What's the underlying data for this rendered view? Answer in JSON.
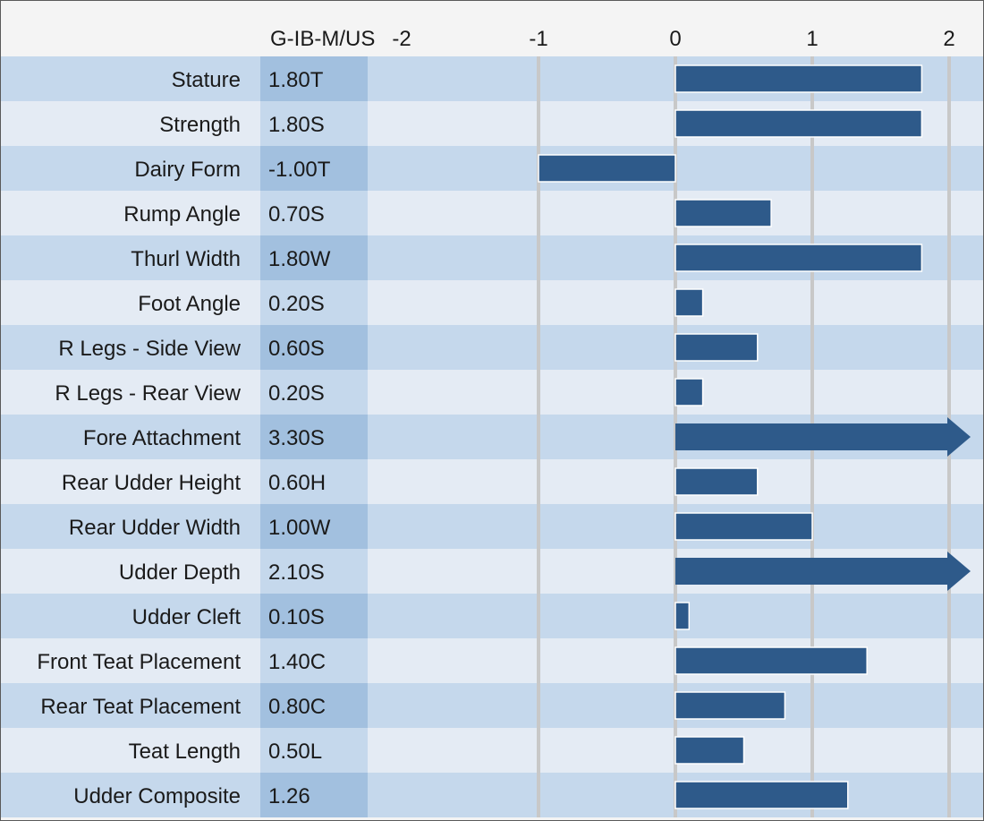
{
  "chart_data": {
    "type": "bar",
    "orientation": "horizontal",
    "value_column_header": "G-IB-M/US",
    "x_ticks": [
      -2,
      -1,
      0,
      1,
      2
    ],
    "x_tick_labels": [
      "-2",
      "-1",
      "0",
      "1",
      "2"
    ],
    "xlim": [
      -2,
      2.2
    ],
    "grid": true,
    "categories": [
      "Stature",
      "Strength",
      "Dairy Form",
      "Rump Angle",
      "Thurl Width",
      "Foot Angle",
      "R Legs - Side View",
      "R Legs - Rear View",
      "Fore Attachment",
      "Rear Udder Height",
      "Rear Udder Width",
      "Udder Depth",
      "Udder Cleft",
      "Front Teat Placement",
      "Rear Teat Placement",
      "Teat Length",
      "Udder Composite"
    ],
    "value_labels": [
      "1.80T",
      "1.80S",
      "-1.00T",
      "0.70S",
      "1.80W",
      "0.20S",
      "0.60S",
      "0.20S",
      "3.30S",
      "0.60H",
      "1.00W",
      "2.10S",
      "0.10S",
      "1.40C",
      "0.80C",
      "0.50L",
      "1.26"
    ],
    "values": [
      1.8,
      1.8,
      -1.0,
      0.7,
      1.8,
      0.2,
      0.6,
      0.2,
      3.3,
      0.6,
      1.0,
      2.1,
      0.1,
      1.4,
      0.8,
      0.5,
      1.26
    ],
    "overflow_arrow": [
      false,
      false,
      false,
      false,
      false,
      false,
      false,
      false,
      true,
      false,
      false,
      true,
      false,
      false,
      false,
      false,
      false
    ]
  },
  "colors": {
    "bar": "#2e5a8a",
    "row_dark": "#c5d8ec",
    "row_light": "#e4ebf4",
    "value_col_dark": "#a2c0df",
    "value_col_light": "#c5d8ec",
    "header_bg": "#f4f4f4",
    "gridline": "#c8c8c8"
  }
}
